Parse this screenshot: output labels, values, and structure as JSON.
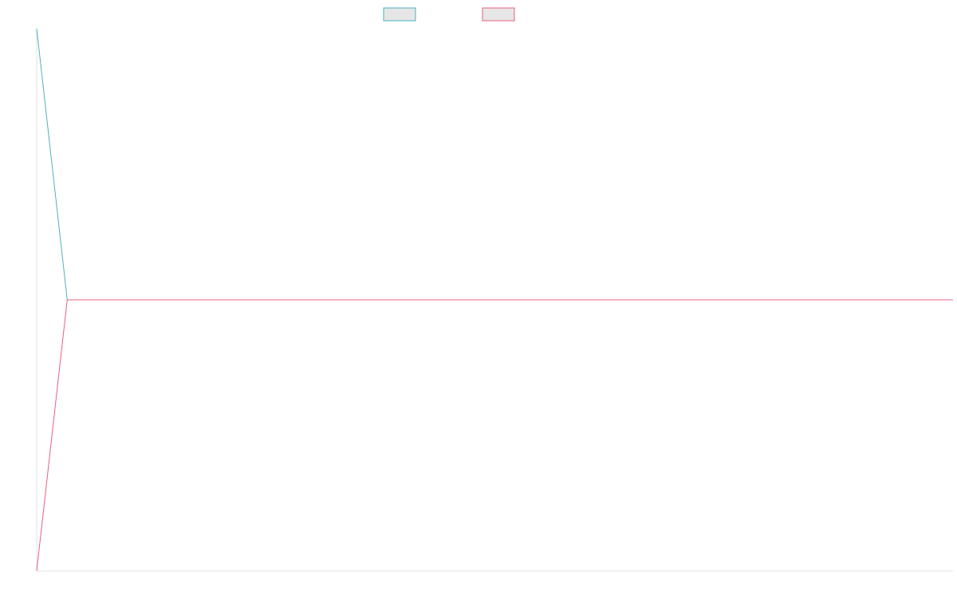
{
  "chart_data": {
    "type": "line",
    "title": "",
    "xlabel": "",
    "ylabel": "",
    "legend_position": "top-center",
    "grid": false,
    "x": [
      0,
      1,
      2,
      3,
      4,
      5,
      6,
      7,
      8,
      9,
      10,
      11,
      12,
      13,
      14,
      15,
      16,
      17,
      18,
      19,
      20,
      21,
      22,
      23,
      24,
      25,
      26,
      27,
      28,
      29,
      30
    ],
    "ylim": [
      -1,
      1
    ],
    "series": [
      {
        "color": "#4bb0c0",
        "fill": "#e6e6e6",
        "values": [
          1,
          0,
          0,
          0,
          0,
          0,
          0,
          0,
          0,
          0,
          0,
          0,
          0,
          0,
          0,
          0,
          0,
          0,
          0,
          0,
          0,
          0,
          0,
          0,
          0,
          0,
          0,
          0,
          0,
          0,
          0
        ]
      },
      {
        "color": "#e8607c",
        "fill": "#e6e6e6",
        "values": [
          -1,
          0,
          0,
          0,
          0,
          0,
          0,
          0,
          0,
          0,
          0,
          0,
          0,
          0,
          0,
          0,
          0,
          0,
          0,
          0,
          0,
          0,
          0,
          0,
          0,
          0,
          0,
          0,
          0,
          0,
          0
        ]
      }
    ]
  }
}
